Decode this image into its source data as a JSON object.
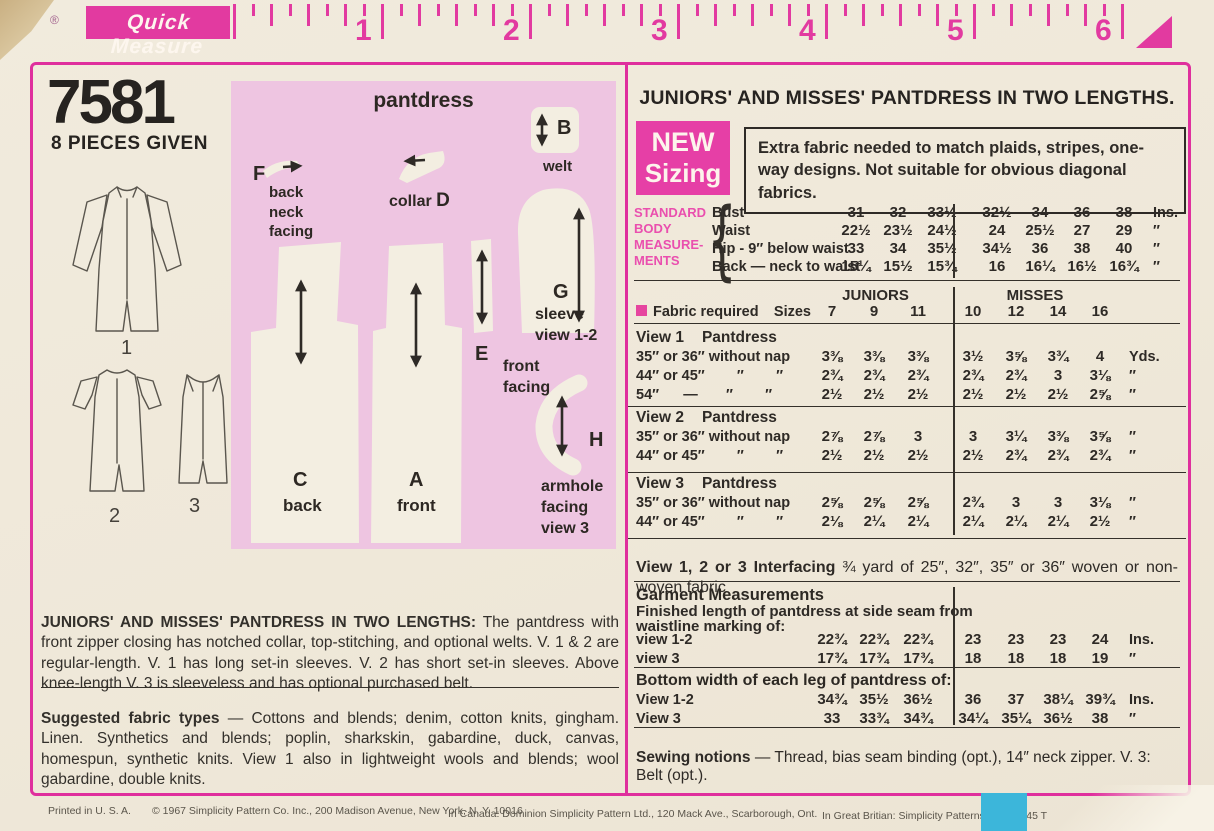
{
  "colors": {
    "magenta": "#e23aa0",
    "panel_pink": "#eec5e1",
    "paper": "#f0ead c",
    "cyan": "#3cb6da",
    "ink": "#2e2a26"
  },
  "ruler": {
    "reg": "®",
    "label": "Quick Measure",
    "numbers": [
      "1",
      "2",
      "3",
      "4",
      "5",
      "6"
    ]
  },
  "left": {
    "number": "7581",
    "pieces_given": "8 PIECES GIVEN",
    "views": [
      "1",
      "2",
      "3"
    ],
    "panel": {
      "title": "pantdress",
      "b": {
        "letter": "B",
        "label": "welt"
      },
      "f": {
        "letter": "F",
        "lines": [
          "back",
          "neck",
          "facing"
        ]
      },
      "d": {
        "pre": "collar",
        "letter": "D"
      },
      "g": {
        "letter": "G",
        "lines": [
          "sleeve",
          "view 1-2"
        ]
      },
      "c": {
        "letter": "C",
        "label": "back"
      },
      "a": {
        "letter": "A",
        "label": "front"
      },
      "e": {
        "letter": "E",
        "lines": [
          "front",
          "facing"
        ]
      },
      "h": {
        "letter": "H",
        "lines": [
          "armhole",
          "facing",
          "view 3"
        ]
      }
    },
    "desc_lead": "JUNIORS' AND MISSES' PANTDRESS IN TWO LENGTHS:",
    "desc_rest": " The pantdress with front zipper closing has notched collar, top-stitching, and optional welts. V. 1 & 2 are regular-length. V. 1 has long set-in sleeves. V. 2 has short set-in sleeves. Above knee-length V. 3 is sleeveless and has optional purchased belt.",
    "fabric_lead": "Suggested fabric types",
    "fabric_rest": " — Cottons and blends; denim, cotton knits, gingham. Linen. Synthetics and blends; poplin, sharkskin, gabardine, duck, canvas, homespun, synthetic knits. View 1 also in lightweight wools and blends; wool gabardine, double knits."
  },
  "right": {
    "title": "JUNIORS' AND MISSES' PANTDRESS IN TWO LENGTHS.",
    "new_sizing": [
      "NEW",
      "Sizing"
    ],
    "notice": "Extra fabric needed to match plaids, stripes, one-way designs. Not suitable for obvious diagonal fabrics.",
    "body": {
      "heading": [
        "STANDARD",
        "BODY",
        "MEASURE-",
        "MENTS"
      ],
      "brace": "{",
      "rows": [
        {
          "label": "Bust",
          "j": [
            "31",
            "32",
            "33½"
          ],
          "m": [
            "32½",
            "34",
            "36",
            "38"
          ],
          "unit": "Ins."
        },
        {
          "label": "Waist",
          "j": [
            "22½",
            "23½",
            "24½"
          ],
          "m": [
            "24",
            "25½",
            "27",
            "29"
          ],
          "unit": "″"
        },
        {
          "label": "Hip - 9″ below waist",
          "j": [
            "33",
            "34",
            "35½"
          ],
          "m": [
            "34½",
            "36",
            "38",
            "40"
          ],
          "unit": "″"
        },
        {
          "label": "Back — neck to waist",
          "j": [
            "15¼",
            "15½",
            "15¾"
          ],
          "m": [
            "16",
            "16¼",
            "16½",
            "16¾"
          ],
          "unit": "″"
        }
      ]
    },
    "groups": {
      "juniors": "JUNIORS",
      "misses": "MISSES"
    },
    "header": {
      "label": "Fabric required",
      "sizes_label": "Sizes",
      "j": [
        "7",
        "9",
        "11"
      ],
      "m": [
        "10",
        "12",
        "14",
        "16"
      ]
    },
    "sections": [
      {
        "view": "View 1",
        "item": "Pantdress",
        "rows": [
          {
            "label": "35″ or 36″ without nap",
            "j": [
              "3⅜",
              "3⅜",
              "3⅜"
            ],
            "m": [
              "3½",
              "3⅝",
              "3¾",
              "4"
            ],
            "unit": "Yds."
          },
          {
            "label": "44″ or 45″        ″        ″",
            "j": [
              "2¾",
              "2¾",
              "2¾"
            ],
            "m": [
              "2¾",
              "2¾",
              "3",
              "3⅛"
            ],
            "unit": "″"
          },
          {
            "label": "54″      —       ″        ″",
            "j": [
              "2½",
              "2½",
              "2½"
            ],
            "m": [
              "2½",
              "2½",
              "2½",
              "2⅝"
            ],
            "unit": "″"
          }
        ]
      },
      {
        "view": "View 2",
        "item": "Pantdress",
        "rows": [
          {
            "label": "35″ or 36″ without nap",
            "j": [
              "2⅞",
              "2⅞",
              "3"
            ],
            "m": [
              "3",
              "3¼",
              "3⅜",
              "3⅝"
            ],
            "unit": "″"
          },
          {
            "label": "44″ or 45″        ″        ″",
            "j": [
              "2½",
              "2½",
              "2½"
            ],
            "m": [
              "2½",
              "2¾",
              "2¾",
              "2¾"
            ],
            "unit": "″"
          }
        ]
      },
      {
        "view": "View 3",
        "item": "Pantdress",
        "rows": [
          {
            "label": "35″ or 36″ without nap",
            "j": [
              "2⅝",
              "2⅝",
              "2⅝"
            ],
            "m": [
              "2¾",
              "3",
              "3",
              "3⅛"
            ],
            "unit": "″"
          },
          {
            "label": "44″ or 45″        ″        ″",
            "j": [
              "2⅛",
              "2¼",
              "2¼"
            ],
            "m": [
              "2¼",
              "2¼",
              "2¼",
              "2½"
            ],
            "unit": "″"
          }
        ]
      }
    ],
    "interfacing_lead": "View 1, 2 or 3   Interfacing",
    "interfacing_rest": "  ¾ yard of 25″, 32″, 35″ or 36″ woven or non-woven fabric",
    "garment": {
      "heading": "Garment Measurements",
      "sub1": "Finished length of pantdress at side seam from",
      "sub2": "waistline marking of:",
      "rows": [
        {
          "label": "view 1-2",
          "j": [
            "22¾",
            "22¾",
            "22¾"
          ],
          "m": [
            "23",
            "23",
            "23",
            "24"
          ],
          "unit": "Ins."
        },
        {
          "label": "view 3",
          "j": [
            "17¾",
            "17¾",
            "17¾"
          ],
          "m": [
            "18",
            "18",
            "18",
            "19"
          ],
          "unit": "″"
        }
      ]
    },
    "bottom_width": {
      "heading": "Bottom width of each leg of pantdress of:",
      "rows": [
        {
          "label": "View 1-2",
          "j": [
            "34¾",
            "35½",
            "36½"
          ],
          "m": [
            "36",
            "37",
            "38¼",
            "39¾"
          ],
          "unit": "Ins."
        },
        {
          "label": "View 3",
          "j": [
            "33",
            "33¾",
            "34¾"
          ],
          "m": [
            "34¼",
            "35¼",
            "36½",
            "38"
          ],
          "unit": "″"
        }
      ]
    },
    "notions_lead": "Sewing notions",
    "notions_rest": " — Thread, bias seam binding (opt.), 14″ neck zipper. V. 3: Belt (opt.)."
  },
  "footer": {
    "printed": "Printed in U. S. A.",
    "copyright": "© 1967 Simplicity Pattern Co. Inc., 200 Madison Avenue, New York, N. Y. 10016",
    "canada": "In Canada:   Dominion Simplicity Pattern Ltd., 120 Mack Ave., Scarborough, Ont.",
    "britain": "In Great Britian: Simplicity Patterns Ltd., 39-45 T"
  }
}
